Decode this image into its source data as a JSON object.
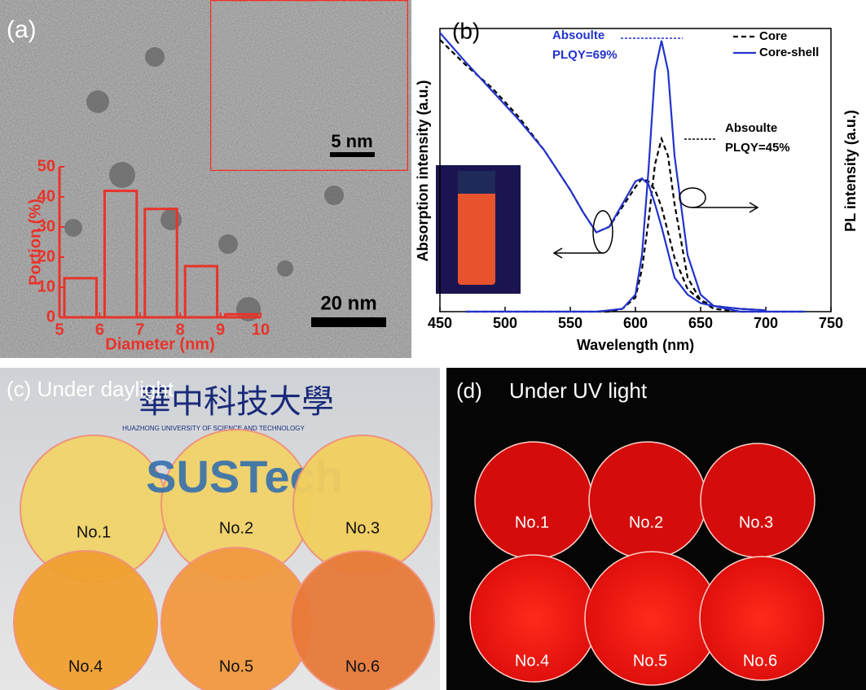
{
  "panels": {
    "a": {
      "label": "(a)",
      "inset_scale_bar": "5 nm",
      "scale_bar": "20 nm"
    },
    "c": {
      "label": "(c) Under daylight",
      "university_cn": "華中科技大學",
      "university_en": "HUAZHONG UNIVERSITY OF SCIENCE AND TECHNOLOGY",
      "logo_text": "SUSTech",
      "samples": [
        "No.1",
        "No.2",
        "No.3",
        "No.4",
        "No.5",
        "No.6"
      ]
    },
    "d": {
      "label": "(d)",
      "title": "Under UV light",
      "samples": [
        "No.1",
        "No.2",
        "No.3",
        "No.4",
        "No.5",
        "No.6"
      ]
    }
  },
  "chart_data": [
    {
      "type": "histogram",
      "x_label": "Diameter (nm)",
      "y_label": "Portion (%)",
      "bins": [
        5,
        6,
        7,
        8,
        9,
        10
      ],
      "values": [
        13,
        42,
        36,
        17,
        1
      ],
      "color": "#e8332a",
      "xlim": [
        5,
        10
      ],
      "xticks": [
        5,
        6,
        7,
        8,
        9,
        10
      ],
      "ylim": [
        0,
        50
      ],
      "yticks": [
        0,
        10,
        20,
        30,
        40,
        50
      ]
    },
    {
      "type": "line",
      "label": "(b)",
      "x_label": "Wavelength (nm)",
      "y_label": "Absorption intensity (a.u.)",
      "y2_label": "PL intensity (a.u.)",
      "xlim": [
        450,
        750
      ],
      "xticks": [
        450,
        500,
        550,
        600,
        650,
        700,
        750
      ],
      "ylim": [
        0,
        1
      ],
      "legend": "top-right",
      "x": [
        450,
        470,
        490,
        510,
        530,
        550,
        560,
        570,
        580,
        590,
        600,
        605,
        610,
        615,
        620,
        625,
        630,
        640,
        650,
        660,
        680,
        700,
        730
      ],
      "series": [
        {
          "name": "Core",
          "color": "#000000",
          "dashed": true,
          "absorption": [
            0.96,
            0.87,
            0.79,
            0.69,
            0.57,
            0.43,
            0.35,
            0.28,
            0.3,
            0.37,
            0.44,
            0.47,
            0.46,
            0.43,
            0.37,
            0.28,
            0.19,
            0.08,
            0.04,
            0.02,
            0.01,
            0.005,
            null
          ],
          "pl": [
            null,
            0,
            0,
            0,
            0,
            0,
            0,
            0,
            0,
            0.01,
            0.05,
            0.15,
            0.32,
            0.52,
            0.61,
            0.55,
            0.38,
            0.12,
            0.04,
            0.01,
            0,
            0,
            0
          ]
        },
        {
          "name": "Core-shell",
          "color": "#2233cc",
          "dashed": false,
          "absorption": [
            0.985,
            0.88,
            0.78,
            0.68,
            0.57,
            0.43,
            0.35,
            0.28,
            0.3,
            0.38,
            0.46,
            0.47,
            0.45,
            0.38,
            0.3,
            0.21,
            0.12,
            0.06,
            0.03,
            0.02,
            0.01,
            0.005,
            null
          ],
          "pl": [
            null,
            0,
            0,
            0,
            0,
            0,
            0,
            0,
            0.005,
            0.01,
            0.06,
            0.2,
            0.5,
            0.85,
            0.957,
            0.85,
            0.55,
            0.2,
            0.06,
            0.02,
            0,
            0,
            0
          ]
        }
      ],
      "annotations": [
        {
          "lines": [
            "Absoulte",
            "PLQY=69%"
          ],
          "color": "#2233cc"
        },
        {
          "lines": [
            "Absoulte",
            "PLQY=45%"
          ],
          "color": "#000000"
        }
      ]
    }
  ]
}
